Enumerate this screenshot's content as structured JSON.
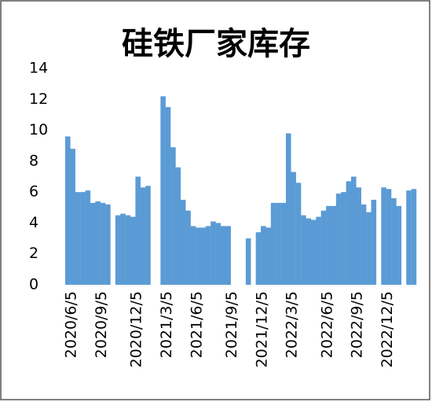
{
  "chart_data": {
    "type": "bar",
    "title": "硅铁厂家库存",
    "categories": [
      "2020/6/5",
      null,
      null,
      null,
      null,
      null,
      "2020/9/5",
      null,
      null,
      null,
      null,
      null,
      null,
      "2020/12/5",
      null,
      null,
      null,
      null,
      null,
      "2021/3/5",
      null,
      null,
      null,
      null,
      null,
      "2021/6/5",
      null,
      null,
      null,
      null,
      null,
      null,
      "2021/9/5",
      null,
      null,
      null,
      null,
      null,
      "2021/12/5",
      null,
      null,
      null,
      null,
      null,
      "2022/3/5",
      null,
      null,
      null,
      null,
      null,
      null,
      "2022/6/5",
      null,
      null,
      null,
      null,
      null,
      "2022/9/5",
      null,
      null,
      null,
      null,
      null,
      "2022/12/5",
      null,
      null,
      null,
      null,
      null,
      null
    ],
    "values": [
      9.6,
      8.8,
      6.0,
      6.0,
      6.1,
      5.3,
      5.4,
      5.3,
      5.2,
      null,
      4.5,
      4.6,
      4.5,
      4.4,
      7.0,
      6.3,
      6.4,
      null,
      null,
      12.2,
      11.5,
      8.9,
      7.6,
      5.5,
      4.8,
      3.8,
      3.7,
      3.7,
      3.8,
      4.1,
      4.0,
      3.8,
      3.8,
      null,
      null,
      null,
      3.0,
      null,
      3.4,
      3.8,
      3.7,
      5.3,
      5.3,
      5.3,
      9.8,
      7.3,
      6.6,
      4.5,
      4.3,
      4.2,
      4.4,
      4.8,
      5.1,
      5.1,
      5.9,
      6.0,
      6.7,
      7.0,
      6.3,
      5.2,
      4.7,
      5.5,
      null,
      6.3,
      6.2,
      5.6,
      5.1,
      null,
      6.1,
      6.2
    ],
    "color": "#5b9bd5",
    "ylim": [
      0,
      14
    ],
    "yticks": [
      0,
      2,
      4,
      6,
      8,
      10,
      12,
      14
    ],
    "grid": false
  }
}
